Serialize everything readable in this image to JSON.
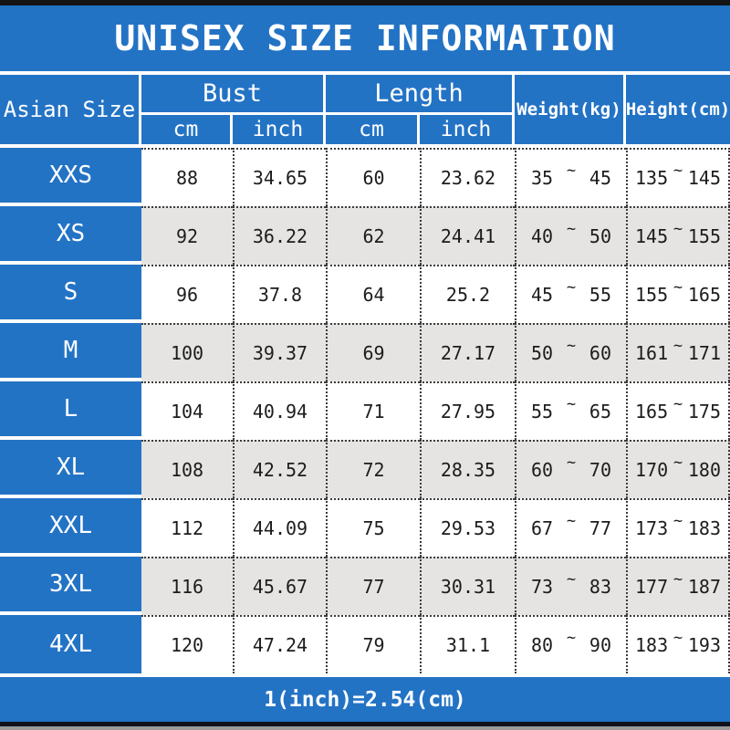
{
  "title": "UNISEX SIZE INFORMATION",
  "footer_note": "1(inch)=2.54(cm)",
  "colors": {
    "accent_blue": "#2373c5",
    "alt_row_gray": "#e5e4e2",
    "top_bar_black": "#141414",
    "bottom_strip_gray": "#9b9b9b",
    "text_dark": "#1c1c1c",
    "text_white": "#ffffff"
  },
  "table": {
    "header": {
      "size_label": "Asian Size",
      "bust_label": "Bust",
      "length_label": "Length",
      "weight_label": "Weight(kg)",
      "height_label": "Height(cm)",
      "cm_label": "cm",
      "inch_label": "inch"
    },
    "range_separator": "~",
    "rows": [
      {
        "size": "XXS",
        "bust_cm": "88",
        "bust_inch": "34.65",
        "length_cm": "60",
        "length_inch": "23.62",
        "weight_min": "35",
        "weight_max": "45",
        "height_min": "135",
        "height_max": "145"
      },
      {
        "size": "XS",
        "bust_cm": "92",
        "bust_inch": "36.22",
        "length_cm": "62",
        "length_inch": "24.41",
        "weight_min": "40",
        "weight_max": "50",
        "height_min": "145",
        "height_max": "155"
      },
      {
        "size": "S",
        "bust_cm": "96",
        "bust_inch": "37.8",
        "length_cm": "64",
        "length_inch": "25.2",
        "weight_min": "45",
        "weight_max": "55",
        "height_min": "155",
        "height_max": "165"
      },
      {
        "size": "M",
        "bust_cm": "100",
        "bust_inch": "39.37",
        "length_cm": "69",
        "length_inch": "27.17",
        "weight_min": "50",
        "weight_max": "60",
        "height_min": "161",
        "height_max": "171"
      },
      {
        "size": "L",
        "bust_cm": "104",
        "bust_inch": "40.94",
        "length_cm": "71",
        "length_inch": "27.95",
        "weight_min": "55",
        "weight_max": "65",
        "height_min": "165",
        "height_max": "175"
      },
      {
        "size": "XL",
        "bust_cm": "108",
        "bust_inch": "42.52",
        "length_cm": "72",
        "length_inch": "28.35",
        "weight_min": "60",
        "weight_max": "70",
        "height_min": "170",
        "height_max": "180"
      },
      {
        "size": "XXL",
        "bust_cm": "112",
        "bust_inch": "44.09",
        "length_cm": "75",
        "length_inch": "29.53",
        "weight_min": "67",
        "weight_max": "77",
        "height_min": "173",
        "height_max": "183"
      },
      {
        "size": "3XL",
        "bust_cm": "116",
        "bust_inch": "45.67",
        "length_cm": "77",
        "length_inch": "30.31",
        "weight_min": "73",
        "weight_max": "83",
        "height_min": "177",
        "height_max": "187"
      },
      {
        "size": "4XL",
        "bust_cm": "120",
        "bust_inch": "47.24",
        "length_cm": "79",
        "length_inch": "31.1",
        "weight_min": "80",
        "weight_max": "90",
        "height_min": "183",
        "height_max": "193"
      }
    ]
  },
  "chart_data": {
    "type": "table",
    "title": "UNISEX SIZE INFORMATION",
    "columns": [
      "Asian Size",
      "Bust cm",
      "Bust inch",
      "Length cm",
      "Length inch",
      "Weight(kg)",
      "Height(cm)"
    ],
    "rows": [
      [
        "XXS",
        88,
        34.65,
        60,
        23.62,
        "35~45",
        "135~145"
      ],
      [
        "XS",
        92,
        36.22,
        62,
        24.41,
        "40~50",
        "145~155"
      ],
      [
        "S",
        96,
        37.8,
        64,
        25.2,
        "45~55",
        "155~165"
      ],
      [
        "M",
        100,
        39.37,
        69,
        27.17,
        "50~60",
        "161~171"
      ],
      [
        "L",
        104,
        40.94,
        71,
        27.95,
        "55~65",
        "165~175"
      ],
      [
        "XL",
        108,
        42.52,
        72,
        28.35,
        "60~70",
        "170~180"
      ],
      [
        "XXL",
        112,
        44.09,
        75,
        29.53,
        "67~77",
        "173~183"
      ],
      [
        "3XL",
        116,
        45.67,
        77,
        30.31,
        "73~83",
        "177~187"
      ],
      [
        "4XL",
        120,
        47.24,
        79,
        31.1,
        "80~90",
        "183~193"
      ]
    ],
    "note": "1(inch)=2.54(cm)"
  }
}
